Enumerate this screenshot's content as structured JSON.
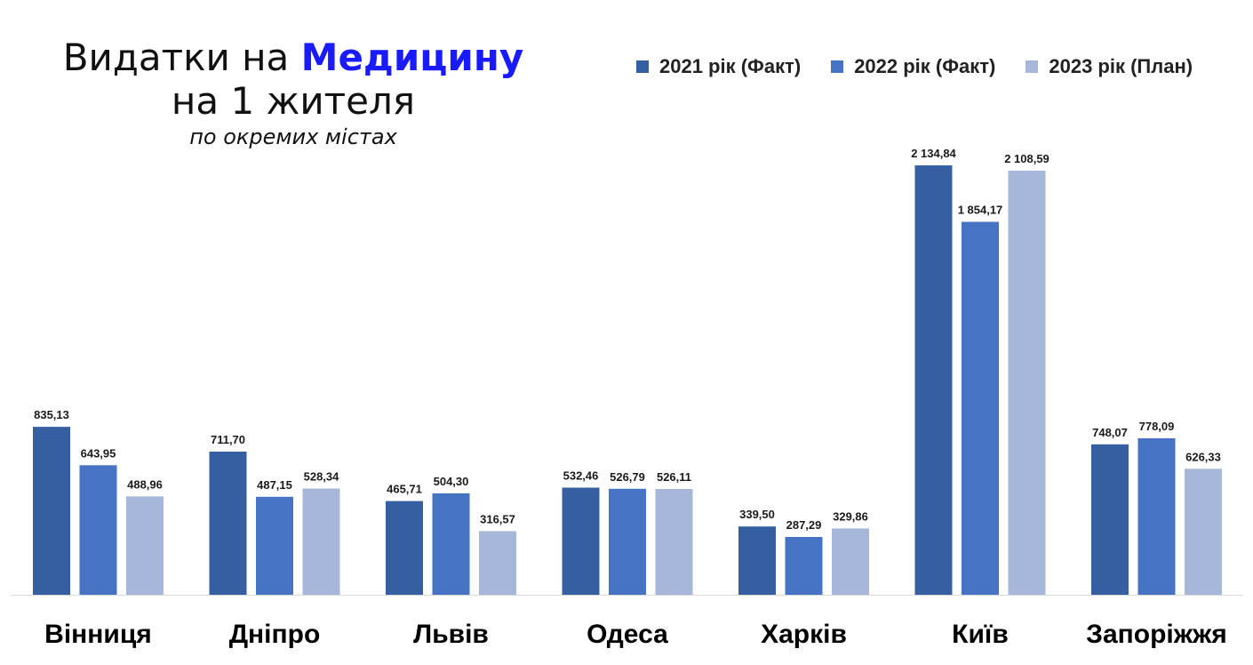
{
  "title": {
    "line1_prefix": "Видатки на ",
    "line1_accent": "Медицину",
    "line2": "на 1 жителя",
    "subtitle": "по окремих містах"
  },
  "colors": {
    "series": [
      "#355fa0",
      "#4673c4",
      "#a6b7d9"
    ],
    "accent": "#1a1aff",
    "axis": "#d9d9d9"
  },
  "chart_data": {
    "type": "bar",
    "title": "Видатки на Медицину на 1 жителя",
    "subtitle": "по окремих містах",
    "categories": [
      "Вінниця",
      "Дніпро",
      "Львів",
      "Одеса",
      "Харків",
      "Київ",
      "Запоріжжя"
    ],
    "series": [
      {
        "name": "2021 рік (Факт)",
        "values": [
          835.13,
          711.7,
          465.71,
          532.46,
          339.5,
          2134.84,
          748.07
        ],
        "labels": [
          "835,13",
          "711,70",
          "465,71",
          "532,46",
          "339,50",
          "2 134,84",
          "748,07"
        ]
      },
      {
        "name": "2022 рік (Факт)",
        "values": [
          643.95,
          487.15,
          504.3,
          526.79,
          287.29,
          1854.17,
          778.09
        ],
        "labels": [
          "643,95",
          "487,15",
          "504,30",
          "526,79",
          "287,29",
          "1 854,17",
          "778,09"
        ]
      },
      {
        "name": "2023 рік (План)",
        "values": [
          488.96,
          528.34,
          316.57,
          526.11,
          329.86,
          2108.59,
          626.33
        ],
        "labels": [
          "488,96",
          "528,34",
          "316,57",
          "526,11",
          "329,86",
          "2 108,59",
          "626,33"
        ]
      }
    ],
    "legend_position": "top-right",
    "grid": false
  }
}
